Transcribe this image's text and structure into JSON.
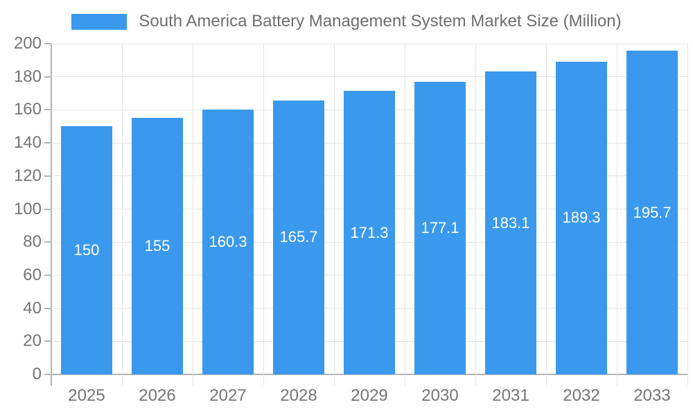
{
  "chart_data": {
    "type": "bar",
    "title": "South America Battery Management System Market Size (Million)",
    "legend_label": "South America Battery Management System Market Size (Million)",
    "categories": [
      "2025",
      "2026",
      "2027",
      "2028",
      "2029",
      "2030",
      "2031",
      "2032",
      "2033"
    ],
    "values": [
      150,
      155,
      160.3,
      165.7,
      171.3,
      177.1,
      183.1,
      189.3,
      195.7
    ],
    "value_labels": [
      "150",
      "155",
      "160.3",
      "165.7",
      "171.3",
      "177.1",
      "183.1",
      "189.3",
      "195.7"
    ],
    "xlabel": "",
    "ylabel": "",
    "ylim": [
      0,
      200
    ],
    "yticks": [
      0,
      20,
      40,
      60,
      80,
      100,
      120,
      140,
      160,
      180,
      200
    ],
    "grid": true,
    "legend_position": "top-center",
    "colors": {
      "bar": "#3A99EC",
      "bar_value_text": "#FFFFFF",
      "axis_text": "#757575",
      "legend_text": "#6E6E6E",
      "gridline": "#E4E4E4",
      "axis_line": "#B3B3B3",
      "background": "#FFFFFF"
    }
  }
}
